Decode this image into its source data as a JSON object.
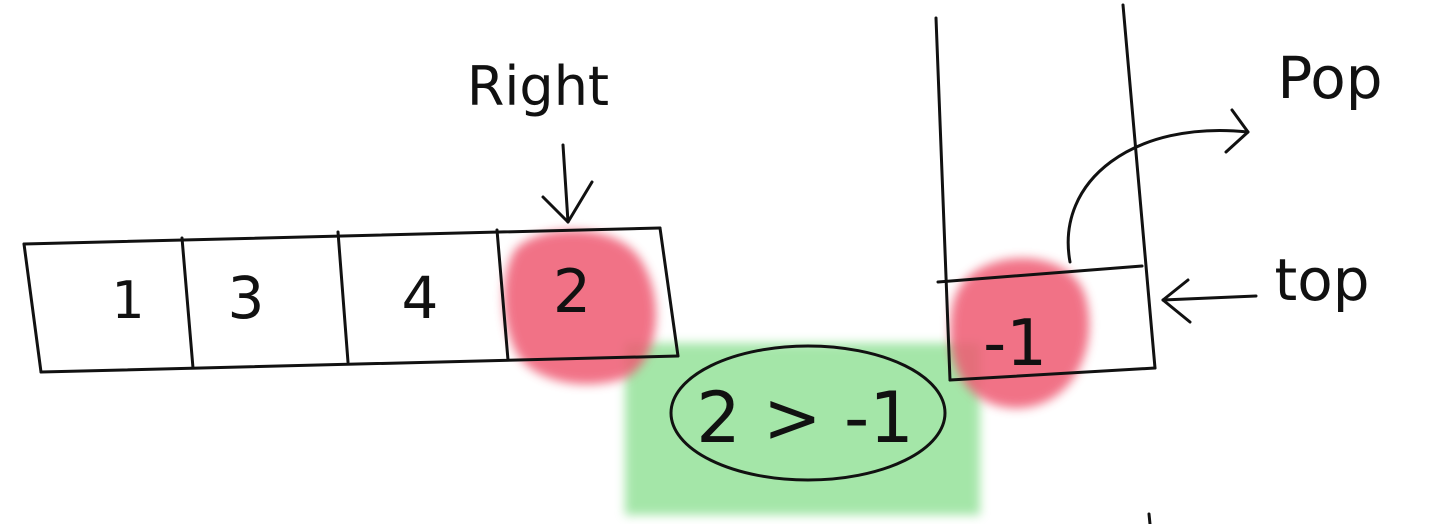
{
  "colors": {
    "ink": "#111111",
    "highlight_red": "#ef5a72",
    "highlight_green": "#86de8c"
  },
  "array": {
    "cells": [
      "1",
      "3",
      "4",
      "2"
    ],
    "pointer_label": "Right"
  },
  "comparison": {
    "text": "2 > -1"
  },
  "stack": {
    "top_value": "-1",
    "pop_label": "Pop",
    "top_label": "top"
  }
}
